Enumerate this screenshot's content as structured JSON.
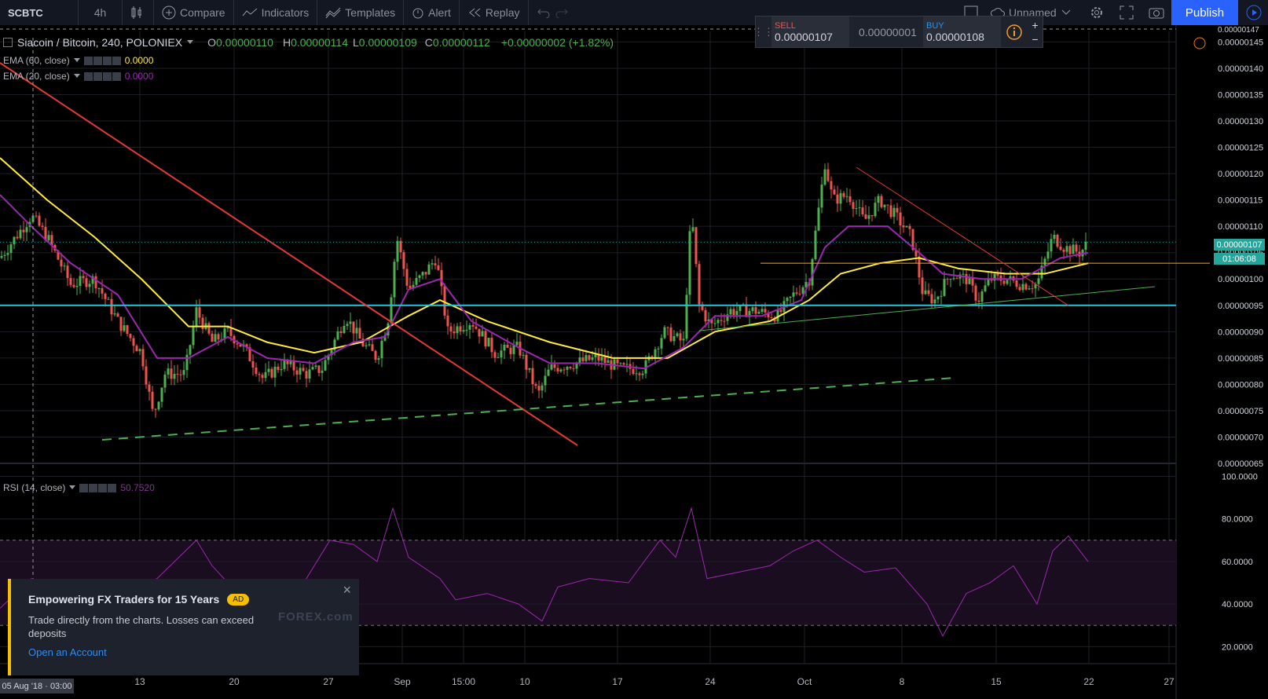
{
  "toolbar": {
    "symbol": "SCBTC",
    "interval": "4h",
    "compare": "Compare",
    "indicators": "Indicators",
    "templates": "Templates",
    "alert": "Alert",
    "replay": "Replay",
    "layout_name": "Unnamed",
    "publish": "Publish"
  },
  "trade_panel": {
    "sell_label": "SELL",
    "sell_price": "0.00000107",
    "spread": "0.00000001",
    "buy_label": "BUY",
    "buy_price": "0.00000108",
    "plus": "+",
    "minus": "−"
  },
  "legend": {
    "title": "Siacoin / Bitcoin, 240, POLONIEX",
    "o_label": "O",
    "o": "0.00000110",
    "h_label": "H",
    "h": "0.00000114",
    "l_label": "L",
    "l": "0.00000109",
    "c_label": "C",
    "c": "0.00000112",
    "change": "+0.00000002 (+1.82%)"
  },
  "indicators": [
    {
      "name": "EMA (60, close)",
      "value": "0.0000",
      "color": "#ffeb3b"
    },
    {
      "name": "EMA (20, close)",
      "value": "0.0000",
      "color": "#9c27b0"
    }
  ],
  "rsi": {
    "name": "RSI (14, close)",
    "value": "50.7520"
  },
  "price_axis": {
    "ticks": [
      "0.00000145",
      "0.00000140",
      "0.00000135",
      "0.00000130",
      "0.00000125",
      "0.00000120",
      "0.00000115",
      "0.00000110",
      "0.00000105",
      "0.00000100",
      "0.00000095",
      "0.00000090",
      "0.00000085",
      "0.00000080",
      "0.00000075",
      "0.00000070",
      "0.00000065"
    ],
    "last_price": "0.00000107",
    "countdown": "01:06:08",
    "top_cut": "0.00000147"
  },
  "rsi_axis": {
    "ticks": [
      "100.0000",
      "80.0000",
      "60.0000",
      "40.0000",
      "20.0000"
    ]
  },
  "time_axis": {
    "ticks": [
      "13",
      "20",
      "27",
      "Sep",
      "15:00",
      "10",
      "17",
      "24",
      "Oct",
      "8",
      "15",
      "22",
      "27"
    ],
    "crosshair_date": "05 Aug '18 · 03:00"
  },
  "ad": {
    "title": "Empowering FX Traders for 15 Years",
    "badge": "AD",
    "text": "Trade directly from the charts. Losses can exceed deposits",
    "link": "Open an Account",
    "logo": "FOREX.com",
    "close": "×"
  },
  "colors": {
    "ema60": "#ffeb3b",
    "ema20": "#9c27b0",
    "up": "#4caf50",
    "down": "#ef5350",
    "support": "#26c6da",
    "trend": "#e53935",
    "rsi": "#9c27b0"
  },
  "chart_data": {
    "type": "candlestick",
    "title": "Siacoin / Bitcoin, 240, POLONIEX",
    "ylim": [
      6.5e-07,
      1.47e-06
    ],
    "close_path": [
      [
        0,
        1.04e-06
      ],
      [
        40,
        1.12e-06
      ],
      [
        60,
        1.08e-06
      ],
      [
        90,
        9.9e-07
      ],
      [
        120,
        1e-06
      ],
      [
        150,
        9.2e-07
      ],
      [
        180,
        8.6e-07
      ],
      [
        195,
        7.4e-07
      ],
      [
        210,
        8.2e-07
      ],
      [
        235,
        8.2e-07
      ],
      [
        250,
        9.4e-07
      ],
      [
        270,
        8.8e-07
      ],
      [
        290,
        9e-07
      ],
      [
        310,
        8.7e-07
      ],
      [
        335,
        8.1e-07
      ],
      [
        360,
        8.4e-07
      ],
      [
        390,
        8.2e-07
      ],
      [
        410,
        8.3e-07
      ],
      [
        440,
        9.3e-07
      ],
      [
        460,
        8.8e-07
      ],
      [
        480,
        8.5e-07
      ],
      [
        495,
        9.3e-07
      ],
      [
        505,
        1.08e-06
      ],
      [
        520,
        9.8e-07
      ],
      [
        540,
        1.01e-06
      ],
      [
        555,
        1.04e-06
      ],
      [
        570,
        9e-07
      ],
      [
        600,
        9.2e-07
      ],
      [
        630,
        8.6e-07
      ],
      [
        660,
        8.7e-07
      ],
      [
        685,
        7.8e-07
      ],
      [
        700,
        8.3e-07
      ],
      [
        730,
        8.4e-07
      ],
      [
        760,
        8.5e-07
      ],
      [
        790,
        8.3e-07
      ],
      [
        820,
        8.3e-07
      ],
      [
        845,
        9e-07
      ],
      [
        870,
        8.8e-07
      ],
      [
        880,
        1.13e-06
      ],
      [
        890,
        9.5e-07
      ],
      [
        905,
        9.1e-07
      ],
      [
        930,
        9.4e-07
      ],
      [
        960,
        9.4e-07
      ],
      [
        990,
        9.3e-07
      ],
      [
        1010,
        9.7e-07
      ],
      [
        1030,
        1e-06
      ],
      [
        1050,
        1.22e-06
      ],
      [
        1060,
        1.15e-06
      ],
      [
        1080,
        1.16e-06
      ],
      [
        1100,
        1.11e-06
      ],
      [
        1120,
        1.15e-06
      ],
      [
        1140,
        1.12e-06
      ],
      [
        1160,
        1.08e-06
      ],
      [
        1175,
        9.7e-07
      ],
      [
        1190,
        9.6e-07
      ],
      [
        1210,
        1.01e-06
      ],
      [
        1230,
        1e-06
      ],
      [
        1245,
        9.6e-07
      ],
      [
        1260,
        1e-06
      ],
      [
        1280,
        1e-06
      ],
      [
        1300,
        9.9e-07
      ],
      [
        1320,
        9.9e-07
      ],
      [
        1340,
        1.08e-06
      ],
      [
        1355,
        1.06e-06
      ],
      [
        1375,
        1.05e-06
      ],
      [
        1385,
        1.07e-06
      ]
    ],
    "ema20_path": [
      [
        0,
        1.16e-06
      ],
      [
        40,
        1.1e-06
      ],
      [
        90,
        1.03e-06
      ],
      [
        150,
        9.7e-07
      ],
      [
        200,
        8.5e-07
      ],
      [
        240,
        8.5e-07
      ],
      [
        290,
        8.9e-07
      ],
      [
        340,
        8.5e-07
      ],
      [
        400,
        8.4e-07
      ],
      [
        450,
        8.8e-07
      ],
      [
        490,
        8.9e-07
      ],
      [
        520,
        9.8e-07
      ],
      [
        560,
        1e-06
      ],
      [
        600,
        9.2e-07
      ],
      [
        660,
        8.7e-07
      ],
      [
        700,
        8.4e-07
      ],
      [
        760,
        8.4e-07
      ],
      [
        820,
        8.3e-07
      ],
      [
        870,
        8.7e-07
      ],
      [
        910,
        9.3e-07
      ],
      [
        970,
        9.3e-07
      ],
      [
        1020,
        9.6e-07
      ],
      [
        1050,
        1.06e-06
      ],
      [
        1080,
        1.1e-06
      ],
      [
        1130,
        1.1e-06
      ],
      [
        1170,
        1.05e-06
      ],
      [
        1200,
        1.01e-06
      ],
      [
        1250,
        1e-06
      ],
      [
        1300,
        1e-06
      ],
      [
        1350,
        1.04e-06
      ],
      [
        1385,
        1.05e-06
      ]
    ],
    "ema60_path": [
      [
        0,
        1.23e-06
      ],
      [
        60,
        1.15e-06
      ],
      [
        120,
        1.08e-06
      ],
      [
        180,
        1e-06
      ],
      [
        240,
        9.1e-07
      ],
      [
        290,
        9.1e-07
      ],
      [
        340,
        8.8e-07
      ],
      [
        400,
        8.6e-07
      ],
      [
        460,
        8.8e-07
      ],
      [
        520,
        9.3e-07
      ],
      [
        560,
        9.6e-07
      ],
      [
        620,
        9.2e-07
      ],
      [
        700,
        8.8e-07
      ],
      [
        780,
        8.5e-07
      ],
      [
        850,
        8.5e-07
      ],
      [
        910,
        9e-07
      ],
      [
        980,
        9.2e-07
      ],
      [
        1030,
        9.6e-07
      ],
      [
        1070,
        1.01e-06
      ],
      [
        1120,
        1.03e-06
      ],
      [
        1170,
        1.04e-06
      ],
      [
        1220,
        1.02e-06
      ],
      [
        1280,
        1.01e-06
      ],
      [
        1330,
        1.01e-06
      ],
      [
        1385,
        1.03e-06
      ]
    ],
    "support_level": 9.5e-07,
    "resistance_level": 1.03e-06,
    "rsi_path": [
      [
        0,
        38
      ],
      [
        40,
        52
      ],
      [
        80,
        42
      ],
      [
        120,
        47
      ],
      [
        160,
        46
      ],
      [
        200,
        52
      ],
      [
        250,
        70
      ],
      [
        270,
        58
      ],
      [
        300,
        46
      ],
      [
        340,
        44
      ],
      [
        380,
        46
      ],
      [
        420,
        70
      ],
      [
        450,
        68
      ],
      [
        480,
        60
      ],
      [
        500,
        85
      ],
      [
        520,
        62
      ],
      [
        560,
        52
      ],
      [
        580,
        42
      ],
      [
        620,
        45
      ],
      [
        660,
        40
      ],
      [
        690,
        32
      ],
      [
        710,
        48
      ],
      [
        750,
        52
      ],
      [
        800,
        50
      ],
      [
        840,
        70
      ],
      [
        860,
        62
      ],
      [
        880,
        85
      ],
      [
        900,
        52
      ],
      [
        940,
        55
      ],
      [
        980,
        58
      ],
      [
        1010,
        65
      ],
      [
        1040,
        70
      ],
      [
        1070,
        62
      ],
      [
        1100,
        55
      ],
      [
        1140,
        57
      ],
      [
        1180,
        40
      ],
      [
        1200,
        25
      ],
      [
        1230,
        45
      ],
      [
        1260,
        50
      ],
      [
        1290,
        58
      ],
      [
        1320,
        40
      ],
      [
        1340,
        65
      ],
      [
        1360,
        72
      ],
      [
        1385,
        60
      ]
    ]
  }
}
